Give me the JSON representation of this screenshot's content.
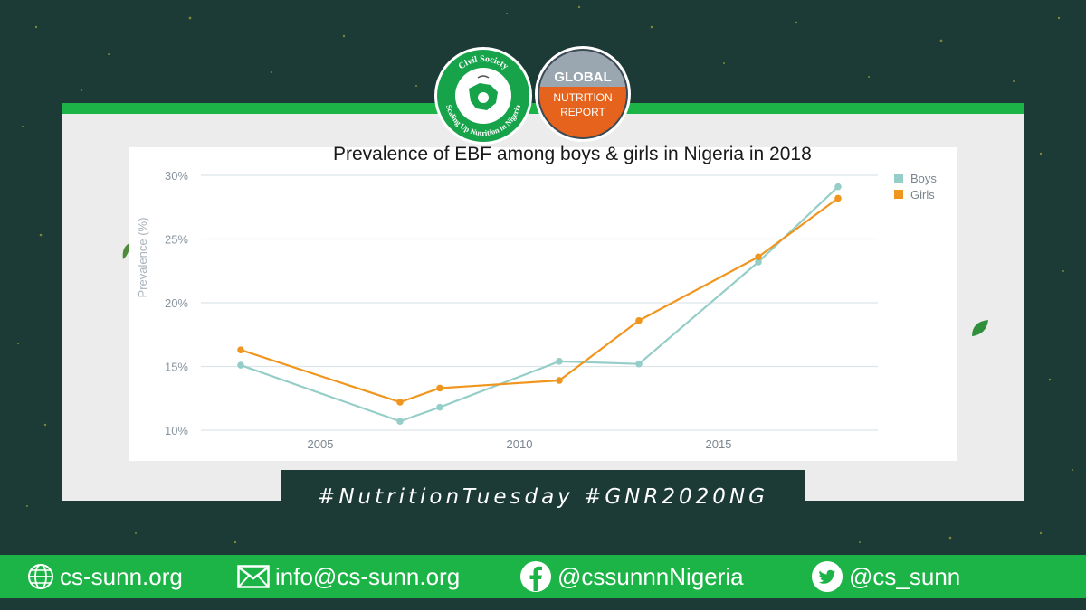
{
  "logos": {
    "sunn": {
      "ring_text_top": "Civil Society",
      "ring_text_bottom": "Scaling Up Nutrition in Nigeria"
    },
    "gnr": {
      "line1": "GLOBAL",
      "line2": "NUTRITION",
      "line3": "REPORT"
    }
  },
  "chart_data": {
    "type": "line",
    "title": "Prevalence of EBF among boys & girls in Nigeria in 2018",
    "ylabel": "Prevalence (%)",
    "xlabel": "",
    "xlim": [
      2002,
      2019
    ],
    "ylim": [
      10,
      30
    ],
    "x_ticks": [
      2005,
      2010,
      2015
    ],
    "x_tick_labels": [
      "2005",
      "2010",
      "2015"
    ],
    "y_ticks": [
      10,
      15,
      20,
      25,
      30
    ],
    "y_tick_labels": [
      "10%",
      "15%",
      "20%",
      "25%",
      "30%"
    ],
    "grid": true,
    "legend": "top-right",
    "series": [
      {
        "name": "Boys",
        "color": "#95cdc8",
        "x": [
          2003,
          2007,
          2008,
          2011,
          2013,
          2016,
          2018
        ],
        "values": [
          15.1,
          10.7,
          11.8,
          15.4,
          15.2,
          23.2,
          29.1
        ]
      },
      {
        "name": "Girls",
        "color": "#f0961e",
        "x": [
          2003,
          2007,
          2008,
          2011,
          2013,
          2016,
          2018
        ],
        "values": [
          16.3,
          12.2,
          13.3,
          13.9,
          18.6,
          23.6,
          28.2
        ]
      }
    ]
  },
  "hashtags": "#NutritionTuesday #GNR2020NG",
  "footer": {
    "website": "cs-sunn.org",
    "email": "info@cs-sunn.org",
    "facebook": "@cssunnnNigeria",
    "twitter": "@cs_sunn"
  },
  "colors": {
    "accent": "#1db447",
    "background": "#1c3a36",
    "boys": "#95cdc8",
    "girls": "#f0961e"
  },
  "icons": [
    "globe-icon",
    "mail-icon",
    "facebook-icon",
    "twitter-icon",
    "leaf-icon"
  ]
}
